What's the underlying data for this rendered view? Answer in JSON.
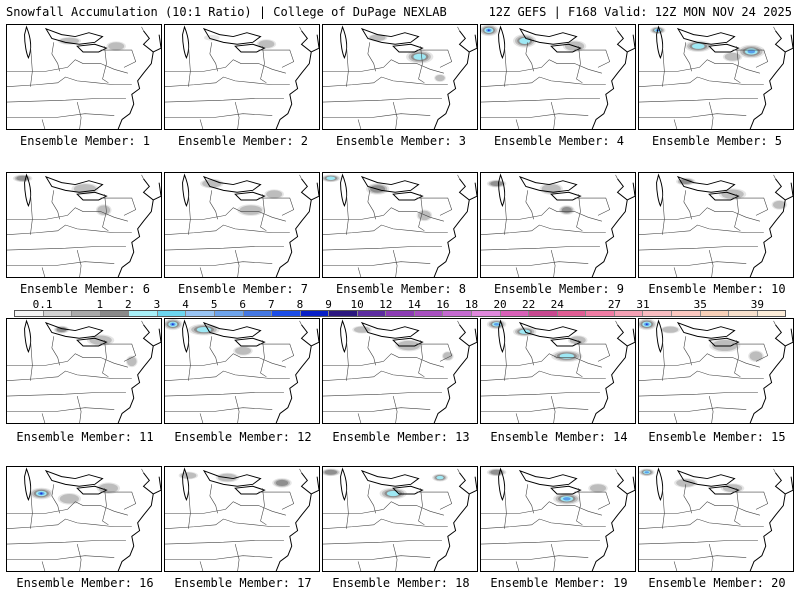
{
  "header": {
    "title": "Snowfall Accumulation (10:1 Ratio) | College of DuPage NEXLAB",
    "run_info": "12Z GEFS | F168 Valid: 12Z MON NOV 24 2025"
  },
  "members": [
    {
      "label": "Ensemble Member: 1",
      "snow": [
        [
          0.7,
          0.2,
          10,
          5,
          1
        ],
        [
          0.4,
          0.15,
          12,
          4,
          1
        ]
      ]
    },
    {
      "label": "Ensemble Member: 2",
      "snow": [
        [
          0.65,
          0.18,
          10,
          5,
          1
        ],
        [
          0.3,
          0.12,
          8,
          3,
          0
        ]
      ]
    },
    {
      "label": "Ensemble Member: 3",
      "snow": [
        [
          0.62,
          0.3,
          14,
          7,
          3
        ],
        [
          0.35,
          0.12,
          10,
          4,
          1
        ],
        [
          0.75,
          0.5,
          6,
          4,
          1
        ]
      ]
    },
    {
      "label": "Ensemble Member: 4",
      "snow": [
        [
          0.05,
          0.05,
          10,
          6,
          5
        ],
        [
          0.28,
          0.15,
          12,
          7,
          3
        ],
        [
          0.6,
          0.2,
          12,
          6,
          1
        ]
      ]
    },
    {
      "label": "Ensemble Member: 5",
      "snow": [
        [
          0.12,
          0.05,
          8,
          4,
          5
        ],
        [
          0.38,
          0.2,
          14,
          6,
          3
        ],
        [
          0.72,
          0.25,
          14,
          7,
          4
        ],
        [
          0.6,
          0.3,
          10,
          5,
          1
        ]
      ]
    },
    {
      "label": "Ensemble Member: 6",
      "snow": [
        [
          0.1,
          0.05,
          10,
          4,
          2
        ],
        [
          0.5,
          0.15,
          14,
          6,
          1
        ],
        [
          0.62,
          0.35,
          8,
          6,
          1
        ]
      ]
    },
    {
      "label": "Ensemble Member: 7",
      "snow": [
        [
          0.3,
          0.1,
          12,
          5,
          1
        ],
        [
          0.55,
          0.35,
          14,
          6,
          1
        ],
        [
          0.7,
          0.2,
          10,
          5,
          1
        ]
      ]
    },
    {
      "label": "Ensemble Member: 8",
      "snow": [
        [
          0.05,
          0.05,
          10,
          4,
          3
        ],
        [
          0.35,
          0.15,
          12,
          6,
          2
        ],
        [
          0.65,
          0.4,
          8,
          6,
          1
        ]
      ]
    },
    {
      "label": "Ensemble Member: 9",
      "snow": [
        [
          0.1,
          0.1,
          10,
          4,
          2
        ],
        [
          0.45,
          0.15,
          12,
          6,
          1
        ],
        [
          0.55,
          0.35,
          8,
          5,
          2
        ]
      ]
    },
    {
      "label": "Ensemble Member: 10",
      "snow": [
        [
          0.3,
          0.08,
          10,
          4,
          2
        ],
        [
          0.6,
          0.2,
          14,
          6,
          1
        ],
        [
          0.9,
          0.3,
          8,
          5,
          1
        ]
      ]
    },
    {
      "label": "Ensemble Member: 11",
      "snow": [
        [
          0.35,
          0.1,
          8,
          4,
          2
        ],
        [
          0.6,
          0.2,
          14,
          6,
          1
        ],
        [
          0.8,
          0.4,
          6,
          6,
          1
        ]
      ]
    },
    {
      "label": "Ensemble Member: 12",
      "snow": [
        [
          0.05,
          0.05,
          10,
          6,
          5
        ],
        [
          0.25,
          0.1,
          16,
          6,
          3
        ],
        [
          0.5,
          0.3,
          10,
          5,
          1
        ]
      ]
    },
    {
      "label": "Ensemble Member: 13",
      "snow": [
        [
          0.25,
          0.1,
          10,
          4,
          1
        ],
        [
          0.55,
          0.25,
          14,
          6,
          1
        ],
        [
          0.8,
          0.35,
          6,
          5,
          1
        ]
      ]
    },
    {
      "label": "Ensemble Member: 14",
      "snow": [
        [
          0.1,
          0.05,
          10,
          5,
          4
        ],
        [
          0.28,
          0.12,
          12,
          5,
          3
        ],
        [
          0.55,
          0.35,
          16,
          6,
          3
        ],
        [
          0.62,
          0.2,
          10,
          5,
          1
        ]
      ]
    },
    {
      "label": "Ensemble Member: 15",
      "snow": [
        [
          0.05,
          0.05,
          10,
          6,
          5
        ],
        [
          0.2,
          0.1,
          10,
          4,
          1
        ],
        [
          0.55,
          0.25,
          16,
          7,
          1
        ],
        [
          0.75,
          0.35,
          8,
          6,
          1
        ]
      ]
    },
    {
      "label": "Ensemble Member: 16",
      "snow": [
        [
          0.22,
          0.25,
          12,
          6,
          5
        ],
        [
          0.4,
          0.3,
          12,
          6,
          1
        ],
        [
          0.65,
          0.2,
          12,
          6,
          1
        ]
      ]
    },
    {
      "label": "Ensemble Member: 17",
      "snow": [
        [
          0.15,
          0.08,
          10,
          4,
          1
        ],
        [
          0.4,
          0.1,
          12,
          5,
          1
        ],
        [
          0.75,
          0.15,
          10,
          5,
          2
        ]
      ]
    },
    {
      "label": "Ensemble Member: 18",
      "snow": [
        [
          0.05,
          0.05,
          10,
          4,
          2
        ],
        [
          0.45,
          0.25,
          14,
          6,
          3
        ],
        [
          0.75,
          0.1,
          8,
          4,
          3
        ]
      ]
    },
    {
      "label": "Ensemble Member: 19",
      "snow": [
        [
          0.1,
          0.05,
          10,
          4,
          2
        ],
        [
          0.55,
          0.3,
          14,
          6,
          4
        ],
        [
          0.75,
          0.2,
          10,
          5,
          1
        ]
      ]
    },
    {
      "label": "Ensemble Member: 20",
      "snow": [
        [
          0.05,
          0.05,
          8,
          4,
          4
        ],
        [
          0.3,
          0.15,
          12,
          5,
          1
        ],
        [
          0.6,
          0.2,
          12,
          5,
          1
        ]
      ]
    }
  ],
  "legend": {
    "labels": [
      "0.1",
      "1",
      "2",
      "3",
      "4",
      "5",
      "6",
      "7",
      "8",
      "9",
      "10",
      "12",
      "14",
      "16",
      "18",
      "20",
      "22",
      "24",
      "27",
      "31",
      "35",
      "39"
    ],
    "colors": [
      "#f4f4f4",
      "#d2d2d2",
      "#aaaaaa",
      "#8a8a8a",
      "#a8f0f8",
      "#6cd6f0",
      "#98c4f4",
      "#6ea4ec",
      "#4478e4",
      "#1c4ee8",
      "#0820c8",
      "#2c1880",
      "#5c2ca0",
      "#8c3cb4",
      "#a850c0",
      "#c46ad0",
      "#e088dc",
      "#d860b8",
      "#c84890",
      "#e05c94",
      "#f07ca4",
      "#f4a0b4",
      "#f8bcc0",
      "#fcc8c0",
      "#f8d0b8",
      "#f8e0cc",
      "#fcecd8"
    ]
  },
  "snow_colors": [
    "#e6e6e6",
    "#bdbdbd",
    "#8f8f8f",
    "#9ee8f4",
    "#5aa0ec",
    "#1838d8"
  ]
}
